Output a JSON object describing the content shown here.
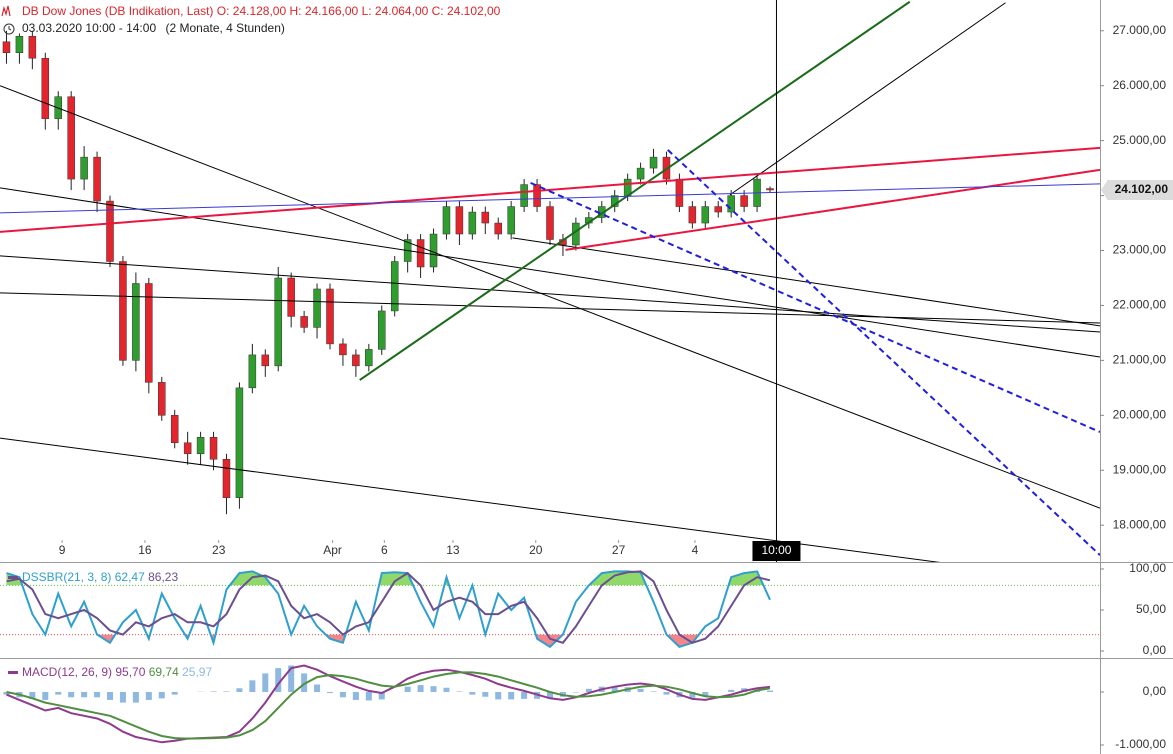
{
  "chart_data": [
    {
      "type": "candlestick",
      "title": "DB Dow Jones (DB Indikation, Last)",
      "ohlc_labels": [
        "O: 24.128,00",
        "H: 24.166,00",
        "L: 24.064,00",
        "C: 24.102,00"
      ],
      "subtitle": "03.03.2020 10:00 - 14:00",
      "period": "(2 Monate, 4 Stunden)",
      "open": [
        26800,
        26600,
        26900,
        26500,
        25400,
        25800,
        24300,
        24700,
        23900,
        22800,
        21000,
        22400,
        20600,
        20000,
        19500,
        19300,
        19600,
        19200,
        18500,
        20500,
        21100,
        20900,
        22500,
        21800,
        21600,
        22300,
        21300,
        21100,
        20900,
        21200,
        21900,
        22800,
        23200,
        22700,
        23300,
        23800,
        23300,
        23700,
        23500,
        23300,
        23800,
        24200,
        23800,
        23200,
        23100,
        23500,
        23600,
        23800,
        24000,
        24300,
        24500,
        24700,
        24300,
        23800,
        23500,
        23800,
        23700,
        24000,
        23800,
        24128
      ],
      "high": [
        27000,
        26950,
        27000,
        26600,
        25900,
        25900,
        24900,
        24800,
        24000,
        22900,
        22600,
        22500,
        20700,
        20100,
        19700,
        19700,
        19700,
        19300,
        20600,
        21300,
        21200,
        22700,
        22600,
        21900,
        22400,
        22400,
        21400,
        21200,
        21300,
        22000,
        22900,
        23300,
        23300,
        23400,
        23900,
        23900,
        23800,
        23800,
        23600,
        23900,
        24300,
        24300,
        23900,
        23300,
        23600,
        23700,
        23900,
        24100,
        24400,
        24600,
        24850,
        24800,
        24400,
        23900,
        23900,
        23900,
        24100,
        24100,
        24400,
        24166
      ],
      "low": [
        26400,
        26400,
        26300,
        25200,
        25200,
        24100,
        24100,
        23700,
        22700,
        20900,
        20800,
        20400,
        19900,
        19400,
        19100,
        19100,
        19000,
        18200,
        18300,
        20400,
        20700,
        20800,
        21600,
        21500,
        21400,
        21200,
        20900,
        20700,
        20800,
        21100,
        21800,
        22600,
        22500,
        22600,
        23200,
        23100,
        23200,
        23300,
        23200,
        23200,
        23700,
        23700,
        23100,
        22900,
        23000,
        23400,
        23500,
        23700,
        23900,
        24200,
        24400,
        24200,
        23700,
        23400,
        23400,
        23600,
        23600,
        23700,
        23700,
        24064
      ],
      "close": [
        26600,
        26900,
        26500,
        25400,
        25800,
        24300,
        24700,
        23900,
        22800,
        21000,
        22400,
        20600,
        20000,
        19500,
        19300,
        19600,
        19200,
        18500,
        20500,
        21100,
        20900,
        22500,
        21800,
        21600,
        22300,
        21300,
        21100,
        20900,
        21200,
        21900,
        22800,
        23200,
        22700,
        23300,
        23800,
        23300,
        23700,
        23500,
        23300,
        23800,
        24200,
        23800,
        23200,
        23100,
        23500,
        23600,
        23800,
        24000,
        24300,
        24500,
        24700,
        24300,
        23800,
        23500,
        23800,
        23700,
        24000,
        23800,
        24300,
        24102
      ],
      "last_label": "24.102,00",
      "up_color": "#2f9e2f",
      "down_color": "#e3262d",
      "xlim": [
        -0.5,
        84.5
      ],
      "xticks": [
        {
          "value": 4.3,
          "label": "9"
        },
        {
          "value": 10.7,
          "label": "16"
        },
        {
          "value": 16.4,
          "label": "23"
        },
        {
          "value": 25.2,
          "label": "Apr"
        },
        {
          "value": 29.2,
          "label": "6"
        },
        {
          "value": 34.5,
          "label": "13"
        },
        {
          "value": 40.9,
          "label": "20"
        },
        {
          "value": 47.3,
          "label": "27"
        },
        {
          "value": 53.2,
          "label": "4"
        }
      ],
      "crosshair": {
        "value": 59.5,
        "label": "10:00"
      },
      "ylim": [
        17330,
        27560
      ],
      "yticks": [
        {
          "value": 18000,
          "label": "18.000,00"
        },
        {
          "value": 19000,
          "label": "19.000,00"
        },
        {
          "value": 20000,
          "label": "20.000,00"
        },
        {
          "value": 21000,
          "label": "21.000,00"
        },
        {
          "value": 22000,
          "label": "22.000,00"
        },
        {
          "value": 23000,
          "label": "23.000,00"
        },
        {
          "value": 24000,
          "label": "24.000,00"
        },
        {
          "value": 25000,
          "label": "25.000,00"
        },
        {
          "value": 26000,
          "label": "26.000,00"
        },
        {
          "value": 27000,
          "label": "27.000,00"
        }
      ],
      "trend_lines": [
        {
          "color": "#000000",
          "dash": false,
          "width": 1,
          "x": [
            -0.5,
            84.5
          ],
          "y": [
            26000,
            18311
          ]
        },
        {
          "color": "#000000",
          "dash": false,
          "width": 1,
          "x": [
            -0.5,
            84.5
          ],
          "y": [
            24140,
            21062
          ]
        },
        {
          "color": "#000000",
          "dash": false,
          "width": 1,
          "x": [
            -0.5,
            84.5
          ],
          "y": [
            22902,
            21517
          ]
        },
        {
          "color": "#000000",
          "dash": false,
          "width": 1,
          "x": [
            -0.5,
            84.5
          ],
          "y": [
            22228,
            21681
          ]
        },
        {
          "color": "#000000",
          "dash": false,
          "width": 1,
          "x": [
            -0.5,
            84.5
          ],
          "y": [
            19586,
            16936
          ]
        },
        {
          "color": "#000000",
          "dash": false,
          "width": 1,
          "x": [
            39.1,
            84.5
          ],
          "y": [
            23230,
            21627
          ]
        },
        {
          "color": "#000000",
          "dash": false,
          "width": 1,
          "x": [
            55.9,
            77.2
          ],
          "y": [
            24013,
            27510
          ]
        },
        {
          "color": "#1a6b1a",
          "dash": false,
          "width": 2,
          "x": [
            27.3,
            69.8
          ],
          "y": [
            20643,
            27528
          ]
        },
        {
          "color": "#e8173f",
          "dash": false,
          "width": 2,
          "x": [
            -0.5,
            84.5
          ],
          "y": [
            23339,
            24869
          ]
        },
        {
          "color": "#e8173f",
          "dash": false,
          "width": 2,
          "x": [
            43.2,
            84.5
          ],
          "y": [
            23011,
            24468
          ]
        },
        {
          "color": "#3a3ad6",
          "dash": false,
          "width": 1,
          "x": [
            -0.5,
            84.5
          ],
          "y": [
            23685,
            24213
          ]
        },
        {
          "color": "#1f1fe0",
          "dash": true,
          "width": 2,
          "x": [
            40.5,
            84.5
          ],
          "y": [
            24231,
            19696
          ]
        },
        {
          "color": "#1f1fe0",
          "dash": true,
          "width": 2,
          "x": [
            51.1,
            84.5
          ],
          "y": [
            24832,
            17455
          ]
        }
      ]
    },
    {
      "type": "oscillator",
      "name": "DSSBR(21, 3, 8)",
      "series": [
        {
          "color": "#2f9fd0",
          "value_label": "62,47",
          "values": [
            95,
            90,
            45,
            20,
            70,
            30,
            60,
            20,
            10,
            35,
            50,
            15,
            70,
            40,
            15,
            55,
            10,
            75,
            95,
            97,
            90,
            70,
            20,
            55,
            30,
            15,
            10,
            60,
            25,
            95,
            96,
            95,
            60,
            30,
            90,
            40,
            80,
            20,
            70,
            50,
            65,
            15,
            5,
            20,
            60,
            80,
            95,
            97,
            97,
            96,
            60,
            20,
            5,
            10,
            30,
            40,
            90,
            95,
            97,
            62.47
          ]
        },
        {
          "color": "#6b4f8f",
          "value_label": "86,23",
          "values": [
            85,
            88,
            75,
            45,
            40,
            45,
            50,
            40,
            25,
            20,
            35,
            30,
            40,
            45,
            35,
            35,
            30,
            45,
            75,
            90,
            92,
            85,
            55,
            40,
            45,
            35,
            20,
            30,
            35,
            60,
            85,
            95,
            80,
            50,
            60,
            65,
            60,
            45,
            45,
            55,
            60,
            40,
            15,
            10,
            30,
            55,
            80,
            92,
            96,
            97,
            85,
            50,
            20,
            10,
            15,
            30,
            55,
            80,
            90,
            86.23
          ]
        }
      ],
      "levels": [
        80,
        20
      ],
      "upper_fill": "#8fd96a",
      "lower_fill": "#f2868a",
      "upper_color": "#6cbf4a",
      "lower_color": "#e05a5a",
      "ylim": [
        -8.5,
        108.5
      ],
      "yticks": [
        {
          "value": 100,
          "label": "100,00"
        },
        {
          "value": 50,
          "label": "50,00"
        },
        {
          "value": 0,
          "label": "0,00"
        }
      ]
    },
    {
      "type": "macd",
      "name": "MACD(12, 26, 9)",
      "series": [
        {
          "color": "#8e3a8e",
          "value_label": "95,70",
          "values": [
            -50,
            -150,
            -250,
            -350,
            -300,
            -400,
            -450,
            -500,
            -600,
            -750,
            -850,
            -900,
            -950,
            -920,
            -880,
            -870,
            -860,
            -850,
            -750,
            -500,
            -200,
            150,
            450,
            500,
            420,
            300,
            200,
            100,
            20,
            -20,
            100,
            250,
            350,
            400,
            420,
            380,
            320,
            250,
            150,
            80,
            20,
            -50,
            -120,
            -150,
            -100,
            -20,
            50,
            100,
            140,
            160,
            130,
            50,
            -50,
            -130,
            -150,
            -100,
            -50,
            20,
            70,
            95.7
          ]
        },
        {
          "color": "#4f8f3f",
          "value_label": "69,74",
          "values": [
            0,
            -50,
            -120,
            -200,
            -250,
            -300,
            -350,
            -400,
            -450,
            -550,
            -650,
            -750,
            -830,
            -870,
            -880,
            -875,
            -870,
            -860,
            -820,
            -720,
            -550,
            -300,
            -50,
            150,
            280,
            320,
            300,
            250,
            180,
            120,
            100,
            150,
            220,
            290,
            340,
            370,
            370,
            340,
            290,
            220,
            150,
            80,
            0,
            -60,
            -90,
            -80,
            -50,
            0,
            50,
            100,
            120,
            100,
            50,
            -20,
            -80,
            -100,
            -90,
            -50,
            30,
            69.74
          ]
        }
      ],
      "histogram": {
        "color": "#8fb8e0",
        "value_label": "25,97",
        "values": [
          -50,
          -100,
          -130,
          -150,
          -50,
          -100,
          -100,
          -100,
          -150,
          -200,
          -200,
          -150,
          -120,
          -50,
          0,
          5,
          10,
          10,
          70,
          220,
          350,
          450,
          500,
          350,
          140,
          -20,
          -100,
          -150,
          -160,
          -140,
          0,
          100,
          130,
          110,
          80,
          10,
          -50,
          -90,
          -140,
          -140,
          -130,
          -130,
          -120,
          -90,
          -10,
          60,
          100,
          100,
          90,
          60,
          10,
          -50,
          -100,
          -110,
          -70,
          0,
          40,
          70,
          40,
          25.97
        ]
      },
      "ylim": [
        -1170,
        641
      ],
      "yticks": [
        {
          "value": 0,
          "label": "0,00"
        },
        {
          "value": -1000,
          "label": "-1.000,00"
        }
      ]
    }
  ]
}
